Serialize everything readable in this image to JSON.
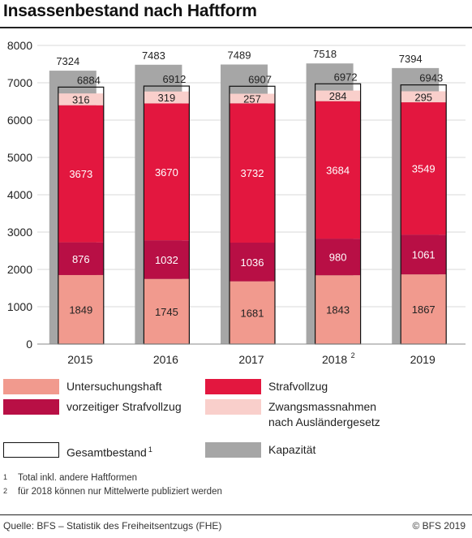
{
  "title": "Insassenbestand nach Haftform",
  "chart_data": {
    "type": "bar",
    "stacked": true,
    "categories": [
      "2015",
      "2016",
      "2017",
      "2018",
      "2019"
    ],
    "category_superscripts": [
      "",
      "",
      "",
      "2",
      ""
    ],
    "ylim": [
      0,
      8000
    ],
    "yticks": [
      "0",
      "1000",
      "2000",
      "3000",
      "4000",
      "5000",
      "6000",
      "7000",
      "8000"
    ],
    "ytick_values": [
      0,
      1000,
      2000,
      3000,
      4000,
      5000,
      6000,
      7000,
      8000
    ],
    "grid": true,
    "legend_position": "bottom",
    "capacity": {
      "name": "Kapazität",
      "color": "#a6a6a6",
      "values": [
        7324,
        7483,
        7489,
        7518,
        7394
      ],
      "labels": [
        "7324",
        "7483",
        "7489",
        "7518",
        "7394"
      ]
    },
    "total": {
      "name": "Gesamtbestand",
      "name_superscript": "1",
      "values": [
        6884,
        6912,
        6907,
        6972,
        6943
      ],
      "labels": [
        "6884",
        "6912",
        "6907",
        "6972",
        "6943"
      ]
    },
    "series": [
      {
        "name": "Untersuchungshaft",
        "color": "#f19a8e",
        "values": [
          1849,
          1745,
          1681,
          1843,
          1867
        ],
        "labels": [
          "1849",
          "1745",
          "1681",
          "1843",
          "1867"
        ]
      },
      {
        "name": "vorzeitiger Strafvollzug",
        "color": "#b80f45",
        "values": [
          876,
          1032,
          1036,
          980,
          1061
        ],
        "labels": [
          "876",
          "1032",
          "1036",
          "980",
          "1061"
        ]
      },
      {
        "name": "Strafvollzug",
        "color": "#e3173f",
        "values": [
          3673,
          3670,
          3732,
          3684,
          3549
        ],
        "labels": [
          "3673",
          "3670",
          "3732",
          "3684",
          "3549"
        ]
      },
      {
        "name": "Zwangsmassnahmen nach Ausländergesetz",
        "color": "#f9cfcb",
        "values": [
          316,
          319,
          257,
          284,
          295
        ],
        "labels": [
          "316",
          "319",
          "257",
          "284",
          "295"
        ]
      }
    ]
  },
  "legend": [
    {
      "label": "Untersuchungshaft",
      "label2": "",
      "sup": "",
      "color": "#f19a8e"
    },
    {
      "label": "Strafvollzug",
      "label2": "",
      "sup": "",
      "color": "#e3173f"
    },
    {
      "label": "vorzeitiger Strafvollzug",
      "label2": "",
      "sup": "",
      "color": "#b80f45"
    },
    {
      "label": "Zwangsmassnahmen",
      "label2": "nach Ausländergesetz",
      "sup": "",
      "color": "#f9cfcb"
    },
    {
      "label": "Gesamtbestand",
      "label2": "",
      "sup": "1",
      "color": "#ffffff"
    },
    {
      "label": "Kapazität",
      "label2": "",
      "sup": "",
      "color": "#a6a6a6"
    }
  ],
  "footnotes": [
    {
      "mark": "1",
      "text": "Total inkl. andere Haftformen"
    },
    {
      "mark": "2",
      "text": "für 2018 können nur Mittelwerte publiziert werden"
    }
  ],
  "source": "Quelle: BFS – Statistik des Freiheitsentzugs (FHE)",
  "copyright": "© BFS 2019"
}
